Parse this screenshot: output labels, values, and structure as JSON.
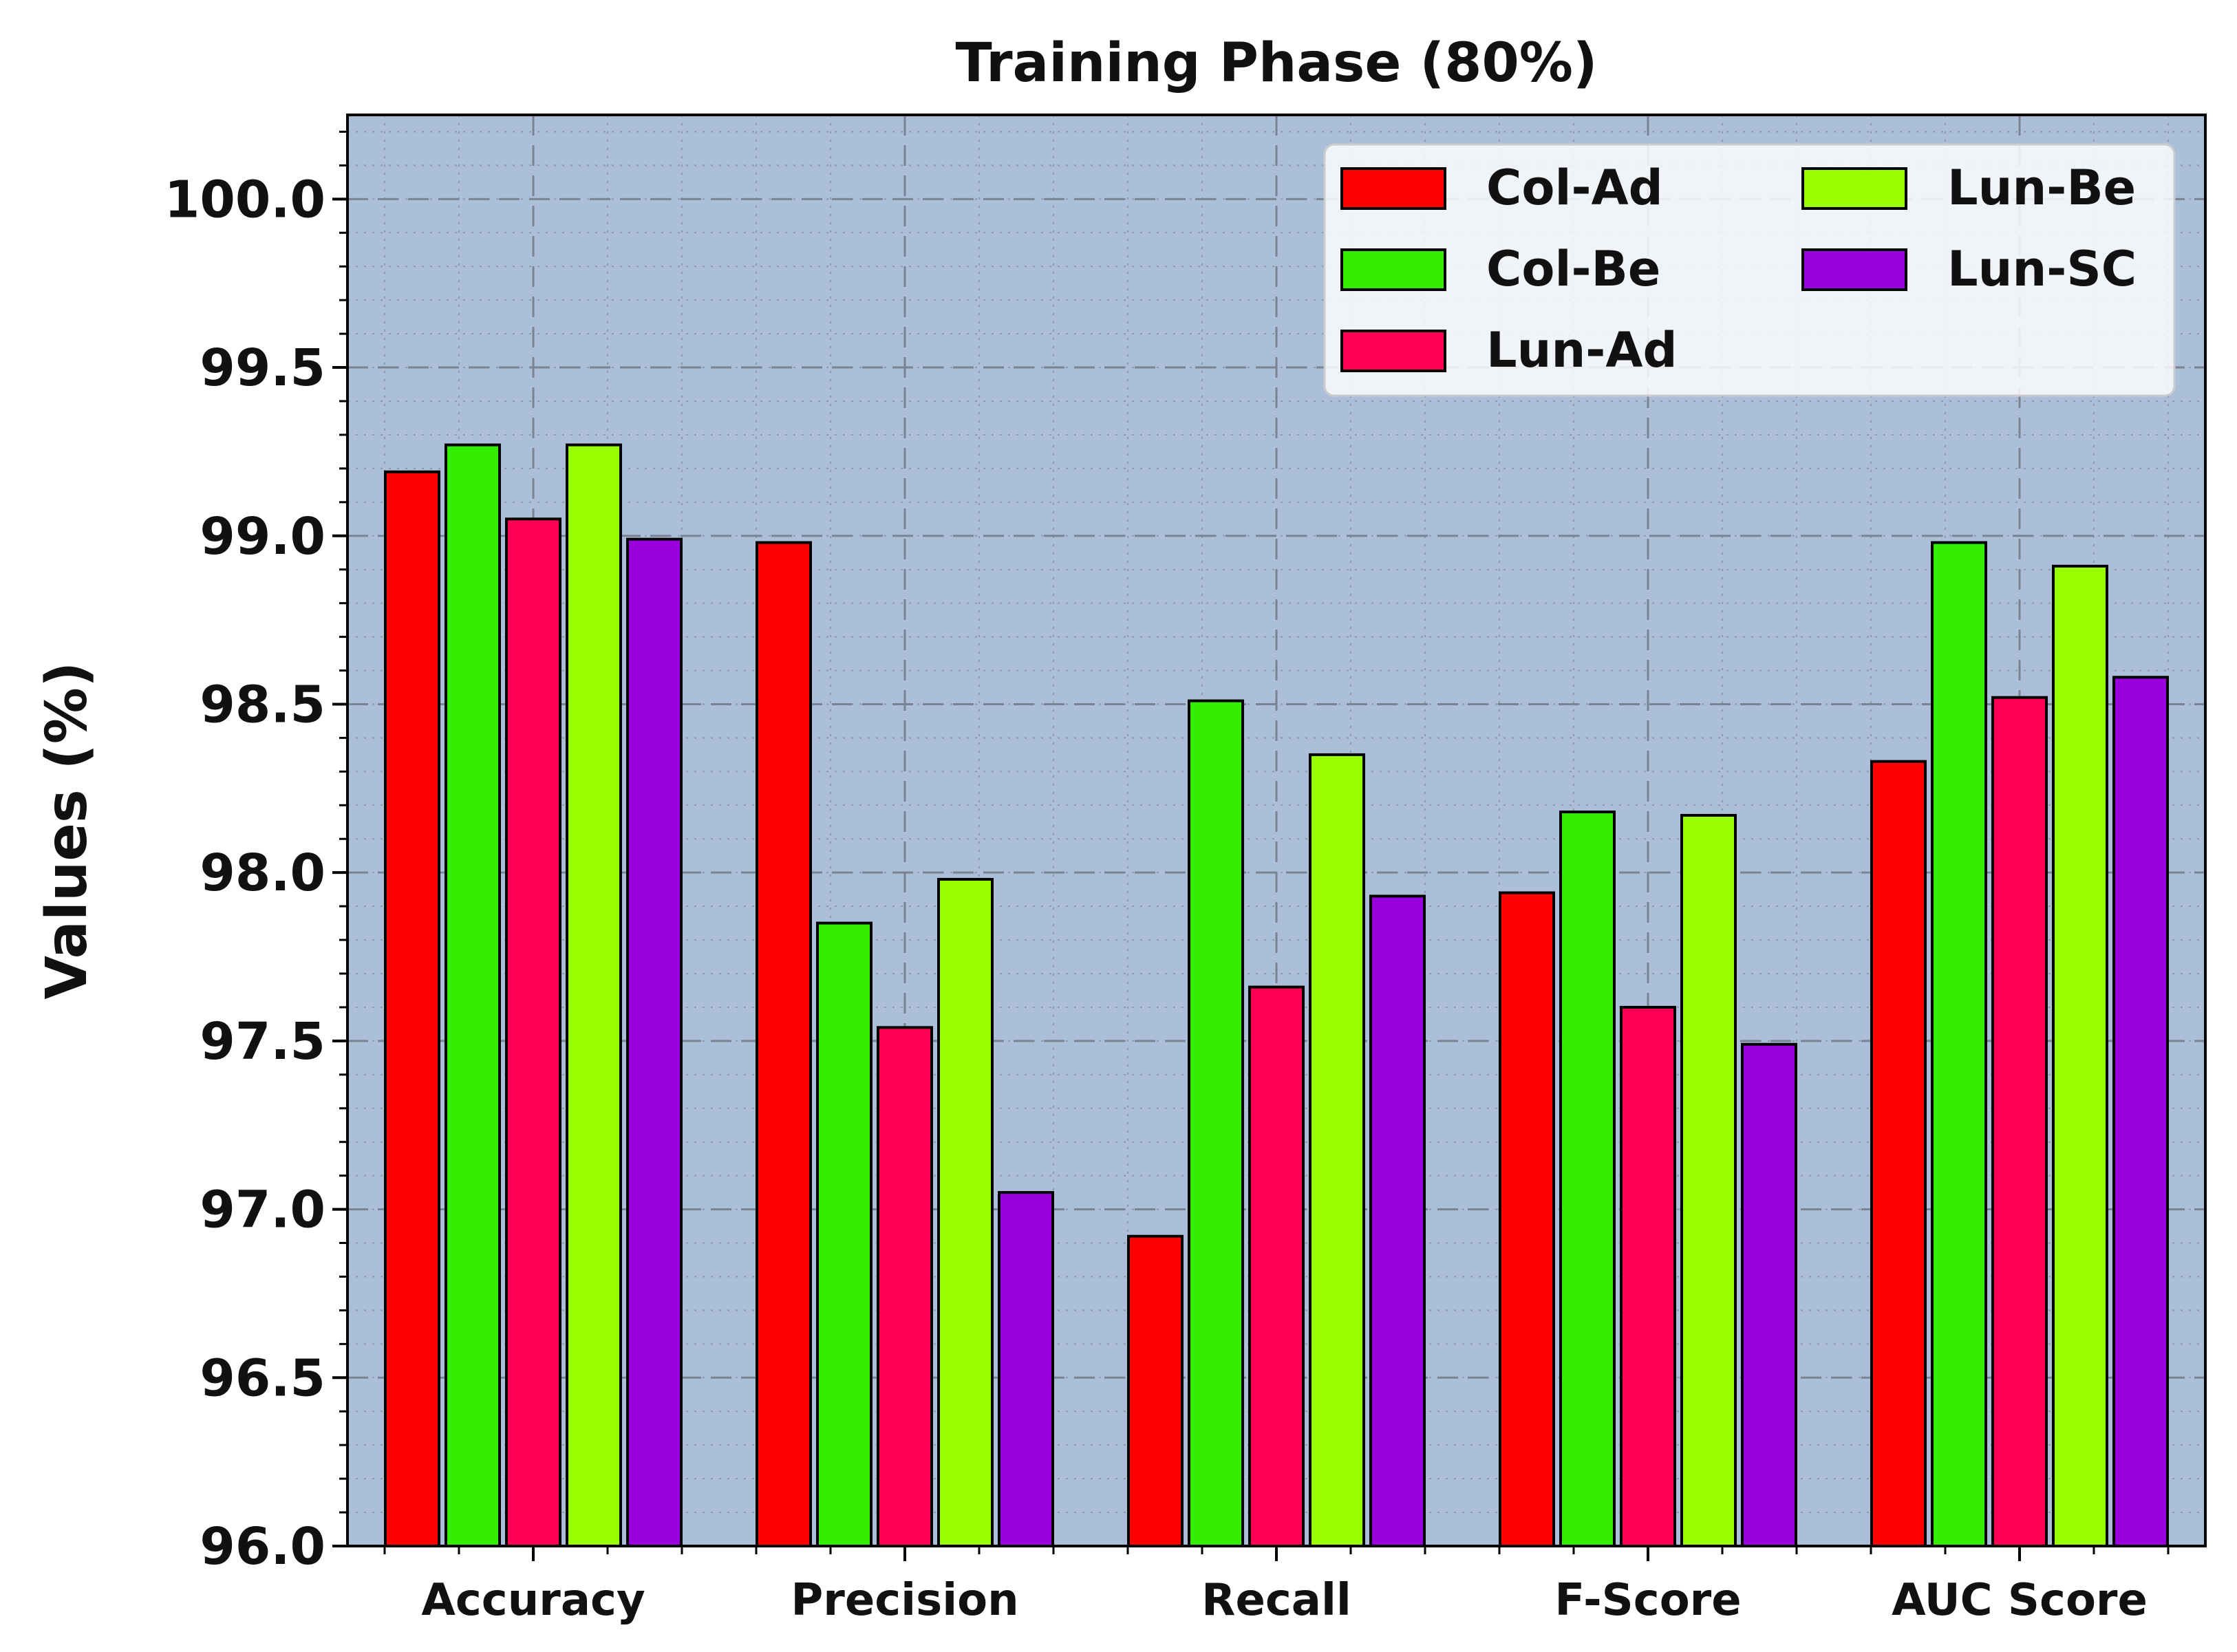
{
  "chart_data": {
    "type": "bar",
    "title": "Training Phase (80%)",
    "xlabel": "",
    "ylabel": "Values (%)",
    "ylim": [
      96.0,
      100.25
    ],
    "yticks": [
      "96.0",
      "96.5",
      "97.0",
      "97.5",
      "98.0",
      "98.5",
      "99.0",
      "99.5",
      "100.0"
    ],
    "ytick_values": [
      96.0,
      96.5,
      97.0,
      97.5,
      98.0,
      98.5,
      99.0,
      99.5,
      100.0
    ],
    "grid": true,
    "legend_position": "top-right",
    "categories": [
      "Accuracy",
      "Precision",
      "Recall",
      "F-Score",
      "AUC Score"
    ],
    "series": [
      {
        "name": "Col-Ad",
        "color": "#ff0000",
        "values": [
          99.19,
          98.98,
          96.92,
          97.94,
          98.33
        ]
      },
      {
        "name": "Col-Be",
        "color": "#33ee00",
        "values": [
          99.27,
          97.85,
          98.51,
          98.18,
          98.98
        ]
      },
      {
        "name": "Lun-Ad",
        "color": "#ff0055",
        "values": [
          99.05,
          97.54,
          97.66,
          97.6,
          98.52
        ]
      },
      {
        "name": "Lun-Be",
        "color": "#99ff00",
        "values": [
          99.27,
          97.98,
          98.35,
          98.17,
          98.91
        ]
      },
      {
        "name": "Lun-SC",
        "color": "#9900dd",
        "values": [
          98.99,
          97.05,
          97.93,
          97.49,
          98.58
        ]
      }
    ]
  }
}
